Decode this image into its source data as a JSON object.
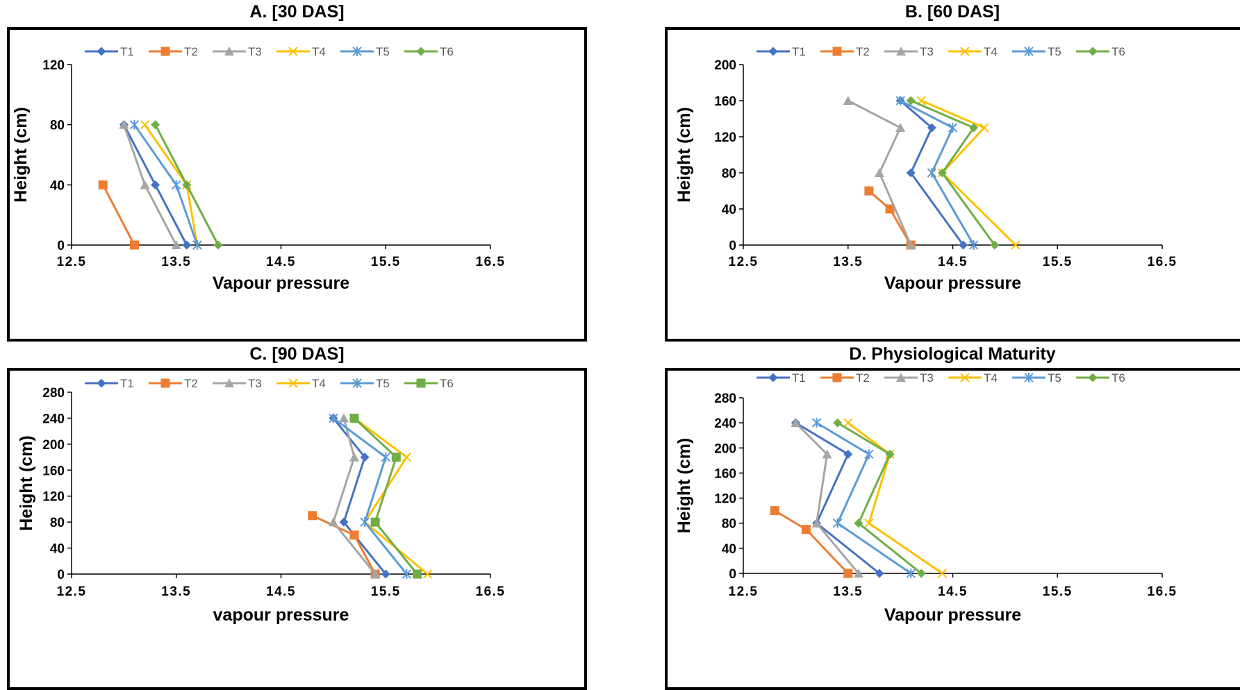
{
  "chart_data": [
    {
      "type": "line",
      "title": "A. [30 DAS]",
      "xlabel": "Vapour pressure",
      "ylabel": "Height (cm)",
      "xlim": [
        12.5,
        16.5
      ],
      "ylim": [
        0,
        120
      ],
      "xticks": [
        "12.5",
        "13.5",
        "14.5",
        "15.5",
        "16.5"
      ],
      "yticks": [
        "0",
        "40",
        "80",
        "120"
      ],
      "legend": "top",
      "series": [
        {
          "name": "T1",
          "color": "#4472C4",
          "marker": "diamond",
          "x": [
            13.6,
            13.3,
            13.0
          ],
          "y": [
            0,
            40,
            80
          ]
        },
        {
          "name": "T2",
          "color": "#ED7D31",
          "marker": "square",
          "x": [
            13.1,
            12.8
          ],
          "y": [
            0,
            40
          ]
        },
        {
          "name": "T3",
          "color": "#A5A5A5",
          "marker": "triangle",
          "x": [
            13.5,
            13.2,
            13.0
          ],
          "y": [
            0,
            40,
            80
          ]
        },
        {
          "name": "T4",
          "color": "#FFC000",
          "marker": "x",
          "x": [
            13.7,
            13.6,
            13.2
          ],
          "y": [
            0,
            40,
            80
          ]
        },
        {
          "name": "T5",
          "color": "#5B9BD5",
          "marker": "star",
          "x": [
            13.7,
            13.5,
            13.1
          ],
          "y": [
            0,
            40,
            80
          ]
        },
        {
          "name": "T6",
          "color": "#70AD47",
          "marker": "diamond",
          "x": [
            13.9,
            13.6,
            13.3
          ],
          "y": [
            0,
            40,
            80
          ]
        }
      ]
    },
    {
      "type": "line",
      "title": "B. [60 DAS]",
      "xlabel": "Vapour pressure",
      "ylabel": "Height (cm)",
      "xlim": [
        12.5,
        16.5
      ],
      "ylim": [
        0,
        200
      ],
      "xticks": [
        "12.5",
        "13.5",
        "14.5",
        "15.5",
        "16.5"
      ],
      "yticks": [
        "0",
        "40",
        "80",
        "120",
        "160",
        "200"
      ],
      "legend": "top",
      "series": [
        {
          "name": "T1",
          "color": "#4472C4",
          "marker": "diamond",
          "x": [
            14.6,
            14.1,
            14.3,
            14.0
          ],
          "y": [
            0,
            80,
            130,
            160
          ]
        },
        {
          "name": "T2",
          "color": "#ED7D31",
          "marker": "square",
          "x": [
            14.1,
            13.9,
            13.7
          ],
          "y": [
            0,
            40,
            60
          ]
        },
        {
          "name": "T3",
          "color": "#A5A5A5",
          "marker": "triangle",
          "x": [
            14.1,
            13.8,
            14.0,
            13.5
          ],
          "y": [
            0,
            80,
            130,
            160
          ]
        },
        {
          "name": "T4",
          "color": "#FFC000",
          "marker": "x",
          "x": [
            15.1,
            14.4,
            14.8,
            14.2
          ],
          "y": [
            0,
            80,
            130,
            160
          ]
        },
        {
          "name": "T5",
          "color": "#5B9BD5",
          "marker": "star",
          "x": [
            14.7,
            14.3,
            14.5,
            14.0
          ],
          "y": [
            0,
            80,
            130,
            160
          ]
        },
        {
          "name": "T6",
          "color": "#70AD47",
          "marker": "diamond",
          "x": [
            14.9,
            14.4,
            14.7,
            14.1
          ],
          "y": [
            0,
            80,
            130,
            160
          ]
        }
      ]
    },
    {
      "type": "line",
      "title": "C. [90 DAS]",
      "xlabel": "vapour pressure",
      "ylabel": "Height (cm)",
      "xlim": [
        12.5,
        16.5
      ],
      "ylim": [
        0,
        280
      ],
      "xticks": [
        "12.5",
        "13.5",
        "14.5",
        "15.5",
        "16.5"
      ],
      "yticks": [
        "0",
        "40",
        "80",
        "120",
        "160",
        "200",
        "240",
        "280"
      ],
      "legend": "top",
      "series": [
        {
          "name": "T1",
          "color": "#4472C4",
          "marker": "diamond",
          "x": [
            15.5,
            15.1,
            15.3,
            15.0
          ],
          "y": [
            0,
            80,
            180,
            240
          ]
        },
        {
          "name": "T2",
          "color": "#ED7D31",
          "marker": "square",
          "x": [
            15.4,
            15.2,
            14.8
          ],
          "y": [
            0,
            60,
            90
          ]
        },
        {
          "name": "T3",
          "color": "#A5A5A5",
          "marker": "triangle",
          "x": [
            15.4,
            15.0,
            15.2,
            15.1
          ],
          "y": [
            0,
            80,
            180,
            240
          ]
        },
        {
          "name": "T4",
          "color": "#FFC000",
          "marker": "x",
          "x": [
            15.9,
            15.3,
            15.7,
            15.2
          ],
          "y": [
            0,
            80,
            180,
            240
          ]
        },
        {
          "name": "T5",
          "color": "#5B9BD5",
          "marker": "star",
          "x": [
            15.7,
            15.3,
            15.5,
            15.0
          ],
          "y": [
            0,
            80,
            180,
            240
          ]
        },
        {
          "name": "T6",
          "color": "#70AD47",
          "marker": "square",
          "x": [
            15.8,
            15.4,
            15.6,
            15.2
          ],
          "y": [
            0,
            80,
            180,
            240
          ]
        }
      ]
    },
    {
      "type": "line",
      "title": "D. Physiological Maturity",
      "xlabel": "Vapour pressure",
      "ylabel": "Height (cm)",
      "xlim": [
        12.5,
        16.5
      ],
      "ylim": [
        0,
        280
      ],
      "xticks": [
        "12.5",
        "13.5",
        "14.5",
        "15.5",
        "16.5"
      ],
      "yticks": [
        "0",
        "40",
        "80",
        "120",
        "160",
        "200",
        "240",
        "280"
      ],
      "legend": "top",
      "series": [
        {
          "name": "T1",
          "color": "#4472C4",
          "marker": "diamond",
          "x": [
            13.8,
            13.2,
            13.5,
            13.0
          ],
          "y": [
            0,
            80,
            190,
            240
          ]
        },
        {
          "name": "T2",
          "color": "#ED7D31",
          "marker": "square",
          "x": [
            13.5,
            13.1,
            12.8
          ],
          "y": [
            0,
            70,
            100
          ]
        },
        {
          "name": "T3",
          "color": "#A5A5A5",
          "marker": "triangle",
          "x": [
            13.6,
            13.2,
            13.3,
            13.0
          ],
          "y": [
            0,
            80,
            190,
            240
          ]
        },
        {
          "name": "T4",
          "color": "#FFC000",
          "marker": "x",
          "x": [
            14.4,
            13.7,
            13.9,
            13.5
          ],
          "y": [
            0,
            80,
            190,
            240
          ]
        },
        {
          "name": "T5",
          "color": "#5B9BD5",
          "marker": "star",
          "x": [
            14.1,
            13.4,
            13.7,
            13.2
          ],
          "y": [
            0,
            80,
            190,
            240
          ]
        },
        {
          "name": "T6",
          "color": "#70AD47",
          "marker": "diamond",
          "x": [
            14.2,
            13.6,
            13.9,
            13.4
          ],
          "y": [
            0,
            80,
            190,
            240
          ]
        }
      ]
    }
  ]
}
